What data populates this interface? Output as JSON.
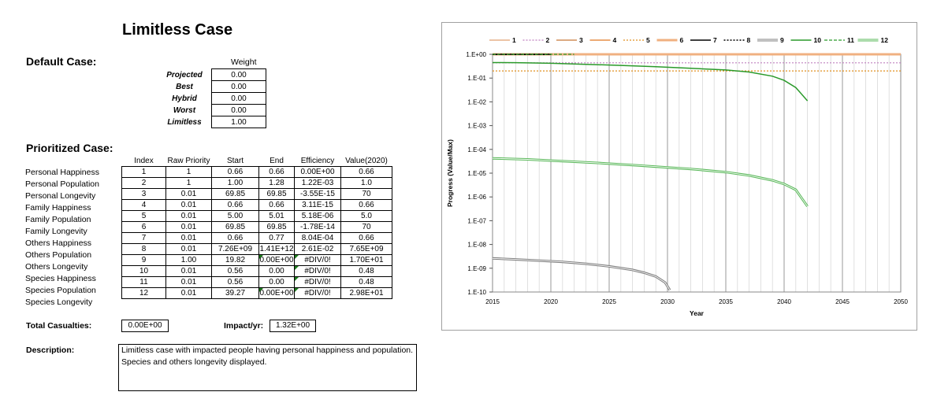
{
  "title": "Limitless Case",
  "default_case": {
    "heading": "Default Case:",
    "weight_header": "Weight",
    "rows": [
      {
        "label": "Projected",
        "value": "0.00"
      },
      {
        "label": "Best",
        "value": "0.00"
      },
      {
        "label": "Hybrid",
        "value": "0.00"
      },
      {
        "label": "Worst",
        "value": "0.00"
      },
      {
        "label": "Limitless",
        "value": "1.00"
      }
    ]
  },
  "prioritized_case": {
    "heading": "Prioritized Case:",
    "headers": [
      "Index",
      "Raw Priority",
      "Start",
      "End",
      "Efficiency",
      "Value(2020)"
    ],
    "rows": [
      {
        "name": "Personal Happiness",
        "cells": [
          "1",
          "1",
          "0.66",
          "0.66",
          "0.00E+00",
          "0.66"
        ]
      },
      {
        "name": "Personal Population",
        "cells": [
          "2",
          "1",
          "1.00",
          "1.28",
          "1.22E-03",
          "1.0"
        ]
      },
      {
        "name": "Personal Longevity",
        "cells": [
          "3",
          "0.01",
          "69.85",
          "69.85",
          "-3.55E-15",
          "70"
        ]
      },
      {
        "name": "Family Happiness",
        "cells": [
          "4",
          "0.01",
          "0.66",
          "0.66",
          "3.11E-15",
          "0.66"
        ]
      },
      {
        "name": "Family Population",
        "cells": [
          "5",
          "0.01",
          "5.00",
          "5.01",
          "5.18E-06",
          "5.0"
        ]
      },
      {
        "name": "Family Longevity",
        "cells": [
          "6",
          "0.01",
          "69.85",
          "69.85",
          "-1.78E-14",
          "70"
        ]
      },
      {
        "name": "Others Happiness",
        "cells": [
          "7",
          "0.01",
          "0.66",
          "0.77",
          "8.04E-04",
          "0.66"
        ]
      },
      {
        "name": "Others Population",
        "cells": [
          "8",
          "0.01",
          "7.26E+09",
          "1.41E+12",
          "2.61E-02",
          "7.65E+09"
        ]
      },
      {
        "name": "Others Longevity",
        "cells": [
          "9",
          "1.00",
          "19.82",
          "0.00E+00",
          "#DIV/0!",
          "1.70E+01"
        ]
      },
      {
        "name": "Species Happiness",
        "cells": [
          "10",
          "0.01",
          "0.56",
          "0.00",
          "#DIV/0!",
          "0.48"
        ]
      },
      {
        "name": "Species Population",
        "cells": [
          "11",
          "0.01",
          "0.56",
          "0.00",
          "#DIV/0!",
          "0.48"
        ]
      },
      {
        "name": "Species Longevity",
        "cells": [
          "12",
          "0.01",
          "39.27",
          "0.00E+00",
          "#DIV/0!",
          "2.98E+01"
        ]
      }
    ]
  },
  "totals": {
    "casualties_label": "Total Casualties:",
    "casualties_value": "0.00E+00",
    "impact_label": "Impact/yr:",
    "impact_value": "1.32E+00"
  },
  "description": {
    "label": "Description:",
    "text": "Limitless case with impacted people having personal happiness and population. Species and others longevity displayed."
  },
  "chart_data": {
    "type": "line",
    "title": "",
    "xlabel": "Year",
    "ylabel": "Progress (Value/Max)",
    "xlim": [
      2015,
      2050
    ],
    "x_ticks": [
      2015,
      2020,
      2025,
      2030,
      2035,
      2040,
      2045,
      2050
    ],
    "y_scale": "log",
    "ylim": [
      1e-10,
      1
    ],
    "y_ticks": [
      1e-10,
      1e-09,
      1e-08,
      1e-07,
      1e-06,
      1e-05,
      0.0001,
      0.001,
      0.01,
      0.1,
      1
    ],
    "y_tick_labels": [
      "1.E-10",
      "1.E-09",
      "1.E-08",
      "1.E-07",
      "1.E-06",
      "1.E-05",
      "1.E-04",
      "1.E-03",
      "1.E-02",
      "1.E-01",
      "1.E+00"
    ],
    "grid": "vertical",
    "legend_position": "top",
    "series": [
      {
        "name": "1",
        "color": "#e0a070",
        "style": "solid",
        "width": 1.2,
        "points": [
          [
            2015,
            1.0
          ],
          [
            2050,
            1.0
          ]
        ]
      },
      {
        "name": "2",
        "color": "#c080c0",
        "style": "dotted",
        "width": 1.2,
        "points": [
          [
            2015,
            0.44
          ],
          [
            2050,
            0.44
          ]
        ]
      },
      {
        "name": "3",
        "color": "#c87838",
        "style": "solid",
        "width": 1.2,
        "points": [
          [
            2015,
            1.0
          ],
          [
            2050,
            1.0
          ]
        ]
      },
      {
        "name": "4",
        "color": "#e07820",
        "style": "solid",
        "width": 1.2,
        "points": [
          [
            2015,
            1.0
          ],
          [
            2050,
            1.0
          ]
        ]
      },
      {
        "name": "5",
        "color": "#e09020",
        "style": "dotted",
        "width": 1.2,
        "points": [
          [
            2015,
            0.2
          ],
          [
            2050,
            0.2
          ]
        ]
      },
      {
        "name": "6",
        "color": "#f0b080",
        "style": "solid",
        "width": 3,
        "points": [
          [
            2015,
            1.0
          ],
          [
            2050,
            1.0
          ]
        ]
      },
      {
        "name": "7",
        "color": "#000000",
        "style": "solid",
        "width": 1.5,
        "points": [
          [
            2015,
            1.0
          ],
          [
            2020,
            1.0
          ]
        ]
      },
      {
        "name": "8",
        "color": "#000000",
        "style": "dotted",
        "width": 1.5,
        "points": [
          [
            2015,
            0.98
          ],
          [
            2020,
            0.98
          ]
        ]
      },
      {
        "name": "9",
        "color": "#808080",
        "style": "double",
        "width": 3,
        "points": [
          [
            2015,
            2.6e-09
          ],
          [
            2017,
            2.35e-09
          ],
          [
            2019,
            2.1e-09
          ],
          [
            2021,
            1.85e-09
          ],
          [
            2023,
            1.55e-09
          ],
          [
            2025,
            1.2e-09
          ],
          [
            2027,
            8.5e-10
          ],
          [
            2028,
            6.5e-10
          ],
          [
            2029,
            4.5e-10
          ],
          [
            2029.8,
            2.5e-10
          ],
          [
            2030.2,
            1.2e-10
          ]
        ]
      },
      {
        "name": "10",
        "color": "#2a9a2a",
        "style": "solid",
        "width": 1.5,
        "points": [
          [
            2015,
            0.45
          ],
          [
            2017,
            0.445
          ],
          [
            2020,
            0.42
          ],
          [
            2023,
            0.38
          ],
          [
            2026,
            0.34
          ],
          [
            2029,
            0.3
          ],
          [
            2032,
            0.26
          ],
          [
            2035,
            0.22
          ],
          [
            2037,
            0.18
          ],
          [
            2039,
            0.12
          ],
          [
            2040,
            0.08
          ],
          [
            2041,
            0.04
          ],
          [
            2042,
            0.011
          ]
        ]
      },
      {
        "name": "11",
        "color": "#2a9a2a",
        "style": "dashed",
        "width": 1.2,
        "points": [
          [
            2015,
            1.0
          ],
          [
            2022,
            1.0
          ]
        ]
      },
      {
        "name": "12",
        "color": "#5ab85a",
        "style": "double",
        "width": 3,
        "points": [
          [
            2015,
            4.2e-05
          ],
          [
            2018,
            3.8e-05
          ],
          [
            2021,
            3.2e-05
          ],
          [
            2024,
            2.7e-05
          ],
          [
            2027,
            2.2e-05
          ],
          [
            2030,
            1.75e-05
          ],
          [
            2032,
            1.5e-05
          ],
          [
            2035,
            1.1e-05
          ],
          [
            2037,
            8e-06
          ],
          [
            2039,
            5e-06
          ],
          [
            2040,
            3.5e-06
          ],
          [
            2041,
            2e-06
          ],
          [
            2042,
            4e-07
          ]
        ]
      }
    ]
  }
}
